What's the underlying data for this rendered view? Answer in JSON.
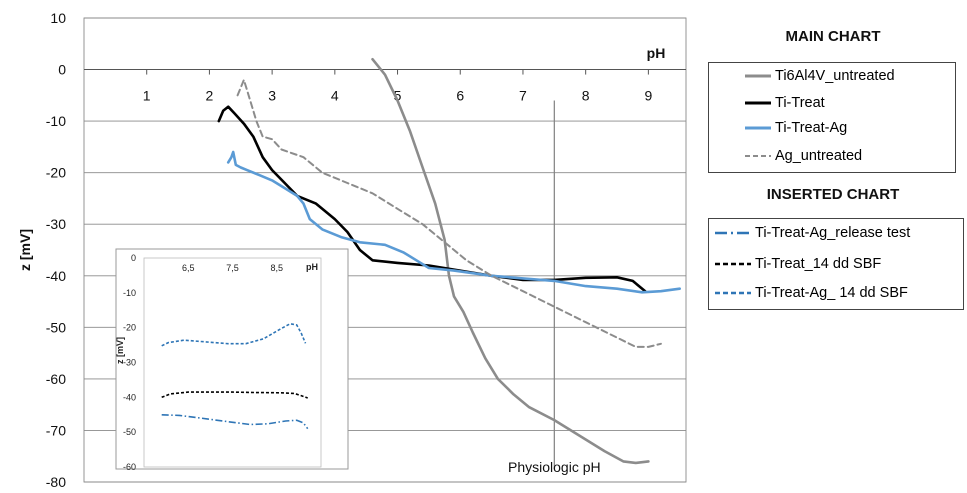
{
  "chart_data": {
    "type": "line",
    "main": {
      "ylabel": "z [mV]",
      "xlabel": "pH",
      "ylim": [
        -80,
        10
      ],
      "y_ticks": [
        10,
        0,
        -10,
        -20,
        -30,
        -40,
        -50,
        -60,
        -70,
        -80
      ],
      "xlim": [
        0,
        9.6
      ],
      "x_ticks": [
        1,
        2,
        3,
        4,
        5,
        6,
        7,
        8,
        9
      ],
      "grid": "horizontal",
      "annotation": {
        "text": "Physiologic pH",
        "x": 7.5
      },
      "series": [
        {
          "name": "Ti6Al4V_untreated",
          "color": "#8c8c8c",
          "dash": "solid",
          "points": [
            [
              4.6,
              2
            ],
            [
              4.8,
              -1
            ],
            [
              5.0,
              -6
            ],
            [
              5.2,
              -12
            ],
            [
              5.4,
              -19
            ],
            [
              5.6,
              -26
            ],
            [
              5.75,
              -33
            ],
            [
              5.82,
              -40
            ],
            [
              5.9,
              -44
            ],
            [
              6.05,
              -47
            ],
            [
              6.2,
              -51
            ],
            [
              6.4,
              -56
            ],
            [
              6.6,
              -60
            ],
            [
              6.85,
              -63
            ],
            [
              7.1,
              -65.5
            ],
            [
              7.5,
              -68
            ],
            [
              7.9,
              -71
            ],
            [
              8.3,
              -74
            ],
            [
              8.6,
              -76
            ],
            [
              8.8,
              -76.3
            ],
            [
              9.0,
              -76
            ]
          ]
        },
        {
          "name": "Ti-Treat",
          "color": "#000000",
          "dash": "solid",
          "points": [
            [
              2.15,
              -10
            ],
            [
              2.22,
              -8
            ],
            [
              2.3,
              -7.2
            ],
            [
              2.4,
              -8.5
            ],
            [
              2.55,
              -10.5
            ],
            [
              2.7,
              -13
            ],
            [
              2.85,
              -17
            ],
            [
              3.0,
              -19.5
            ],
            [
              3.2,
              -22
            ],
            [
              3.4,
              -24.5
            ],
            [
              3.7,
              -26
            ],
            [
              4.0,
              -29
            ],
            [
              4.2,
              -31.5
            ],
            [
              4.4,
              -35
            ],
            [
              4.6,
              -37
            ],
            [
              5.0,
              -37.5
            ],
            [
              5.5,
              -38
            ],
            [
              6.0,
              -39
            ],
            [
              6.5,
              -40
            ],
            [
              7.0,
              -40.8
            ],
            [
              7.5,
              -40.8
            ],
            [
              8.0,
              -40.4
            ],
            [
              8.5,
              -40.3
            ],
            [
              8.75,
              -41
            ],
            [
              8.95,
              -43
            ]
          ]
        },
        {
          "name": "Ti-Treat-Ag",
          "color": "#5b9bd5",
          "dash": "solid",
          "points": [
            [
              2.3,
              -18
            ],
            [
              2.35,
              -17
            ],
            [
              2.38,
              -16
            ],
            [
              2.42,
              -18.5
            ],
            [
              2.5,
              -19
            ],
            [
              2.6,
              -19.5
            ],
            [
              2.8,
              -20.5
            ],
            [
              3.0,
              -21.5
            ],
            [
              3.2,
              -23
            ],
            [
              3.4,
              -24.5
            ],
            [
              3.5,
              -26
            ],
            [
              3.6,
              -29
            ],
            [
              3.8,
              -31
            ],
            [
              4.1,
              -32.5
            ],
            [
              4.4,
              -33.5
            ],
            [
              4.8,
              -34
            ],
            [
              5.1,
              -35.5
            ],
            [
              5.3,
              -37
            ],
            [
              5.5,
              -38.5
            ],
            [
              5.9,
              -39
            ],
            [
              6.5,
              -40
            ],
            [
              7.0,
              -40.5
            ],
            [
              7.5,
              -41
            ],
            [
              8.0,
              -42
            ],
            [
              8.5,
              -42.5
            ],
            [
              8.9,
              -43.2
            ],
            [
              9.2,
              -43
            ],
            [
              9.5,
              -42.5
            ]
          ]
        },
        {
          "name": "Ag_untreated",
          "color": "#8c8c8c",
          "dash": "dash",
          "points": [
            [
              2.45,
              -5
            ],
            [
              2.55,
              -2
            ],
            [
              2.65,
              -6
            ],
            [
              2.75,
              -10
            ],
            [
              2.85,
              -13
            ],
            [
              3.0,
              -13.5
            ],
            [
              3.15,
              -15.5
            ],
            [
              3.5,
              -17
            ],
            [
              3.8,
              -20
            ],
            [
              4.2,
              -22
            ],
            [
              4.6,
              -24
            ],
            [
              5.0,
              -27
            ],
            [
              5.4,
              -30
            ],
            [
              5.8,
              -34
            ],
            [
              6.1,
              -37
            ],
            [
              6.5,
              -40
            ],
            [
              7.0,
              -43
            ],
            [
              7.5,
              -46
            ],
            [
              8.0,
              -49
            ],
            [
              8.5,
              -52
            ],
            [
              8.8,
              -53.8
            ],
            [
              9.0,
              -53.8
            ],
            [
              9.2,
              -53.2
            ]
          ]
        }
      ]
    },
    "inset": {
      "ylabel": "z [mV]",
      "xlabel": "pH",
      "ylim": [
        -60,
        0
      ],
      "y_ticks": [
        0,
        -10,
        -20,
        -30,
        -40,
        -50,
        -60
      ],
      "x_tick_labels": [
        "6,5",
        "7,5",
        "8,5"
      ],
      "x_tick_values": [
        6.5,
        7.5,
        8.5
      ],
      "xlim": [
        5.5,
        9.5
      ],
      "series": [
        {
          "name": "Ti-Treat-Ag_release test",
          "color": "#2e75b6",
          "dash": "dashdot",
          "points": [
            [
              5.9,
              -45
            ],
            [
              6.3,
              -45.2
            ],
            [
              6.8,
              -46
            ],
            [
              7.4,
              -47
            ],
            [
              7.9,
              -47.8
            ],
            [
              8.3,
              -47.6
            ],
            [
              8.7,
              -46.8
            ],
            [
              8.95,
              -46.6
            ],
            [
              9.1,
              -47.3
            ],
            [
              9.2,
              -49
            ]
          ]
        },
        {
          "name": "Ti-Treat_14 dd SBF",
          "color": "#000000",
          "dash": "dash",
          "points": [
            [
              5.9,
              -40
            ],
            [
              6.1,
              -39
            ],
            [
              6.5,
              -38.5
            ],
            [
              7.0,
              -38.5
            ],
            [
              7.5,
              -38.5
            ],
            [
              8.0,
              -38.6
            ],
            [
              8.6,
              -38.7
            ],
            [
              8.9,
              -38.9
            ],
            [
              9.05,
              -39.5
            ],
            [
              9.2,
              -40.2
            ]
          ]
        },
        {
          "name": "Ti-Treat-Ag_ 14 dd SBF",
          "color": "#2e75b6",
          "dash": "dash",
          "points": [
            [
              5.9,
              -25.2
            ],
            [
              6.05,
              -24.3
            ],
            [
              6.4,
              -23.6
            ],
            [
              6.9,
              -24.1
            ],
            [
              7.4,
              -24.6
            ],
            [
              7.8,
              -24.6
            ],
            [
              8.2,
              -23.2
            ],
            [
              8.55,
              -20.6
            ],
            [
              8.8,
              -18.9
            ],
            [
              8.95,
              -19.2
            ],
            [
              9.05,
              -21.5
            ],
            [
              9.15,
              -24.5
            ]
          ]
        }
      ]
    },
    "legend": {
      "main_title": "MAIN CHART",
      "inserted_title": "INSERTED CHART"
    }
  }
}
